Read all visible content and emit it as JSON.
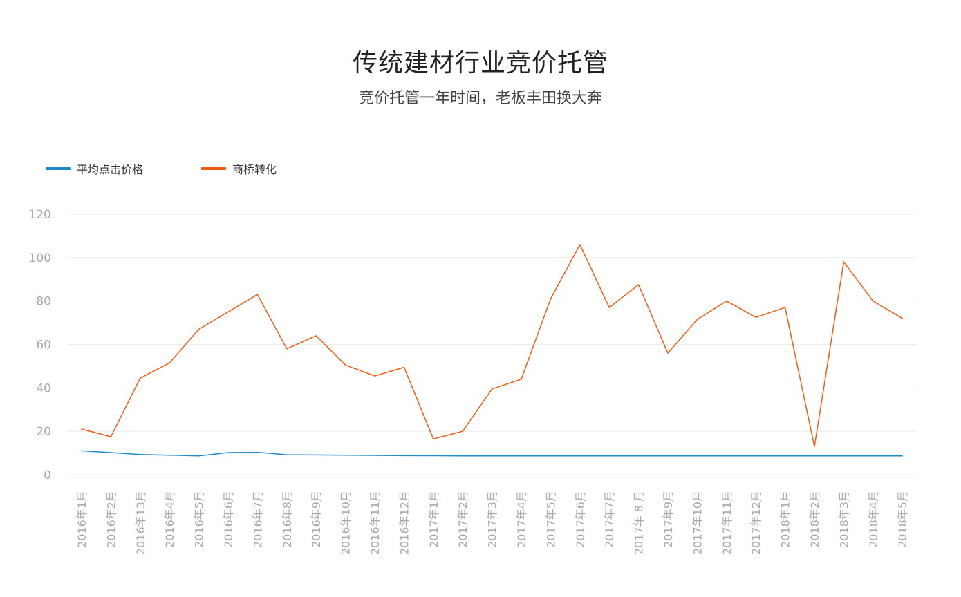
{
  "title": "传统建材行业竞价托管",
  "subtitle": "竞价托管一年时间，老板丰田换大奔",
  "chart_data": {
    "type": "line",
    "title": "传统建材行业竞价托管",
    "subtitle": "竞价托管一年时间，老板丰田换大奔",
    "xlabel": "",
    "ylabel": "",
    "ylim": [
      0,
      120
    ],
    "yticks": [
      0,
      20,
      40,
      60,
      80,
      100,
      120
    ],
    "grid": true,
    "legend_position": "top-left",
    "categories": [
      "2016年1月",
      "2016年2月",
      "2016年13月",
      "2016年4月",
      "2016年5月",
      "2016年6月",
      "2016年7月",
      "2016年8月",
      "2016年9月",
      "2016年10月",
      "2016年11月",
      "2016年12月",
      "2017年1月",
      "2017年2月",
      "2017年3月",
      "2017年4月",
      "2017年5月",
      "2017年6月",
      "2017年7月",
      "2017年 8 月",
      "2017年9月",
      "2017年10月",
      "2017年11月",
      "2017年12月",
      "2018年1月",
      "2018年2月",
      "2018年3月",
      "2018年4月",
      "2018年5月"
    ],
    "series": [
      {
        "name": "平均点击价格",
        "color": "#1e88c9",
        "values": [
          11,
          10.2,
          9.3,
          9,
          8.7,
          10.2,
          10.3,
          9.2,
          9.1,
          9,
          8.9,
          8.8,
          8.75,
          8.7,
          8.7,
          8.7,
          8.7,
          8.7,
          8.7,
          8.7,
          8.7,
          8.7,
          8.7,
          8.7,
          8.7,
          8.7,
          8.7,
          8.7,
          8.7
        ]
      },
      {
        "name": "商桥转化",
        "color": "#f25a0f",
        "values": [
          21,
          17.5,
          44.5,
          51.5,
          67,
          75,
          83,
          58,
          64,
          50.5,
          45.5,
          49.5,
          16.5,
          20,
          39.5,
          44,
          81,
          106,
          77,
          87.5,
          56,
          71.5,
          80,
          72.5,
          77,
          13,
          98,
          80,
          72
        ]
      }
    ]
  },
  "colors": {
    "grid": "#ebebeb",
    "tick_label": "#a9a9b3",
    "title": "#222222",
    "subtitle": "#444444"
  }
}
